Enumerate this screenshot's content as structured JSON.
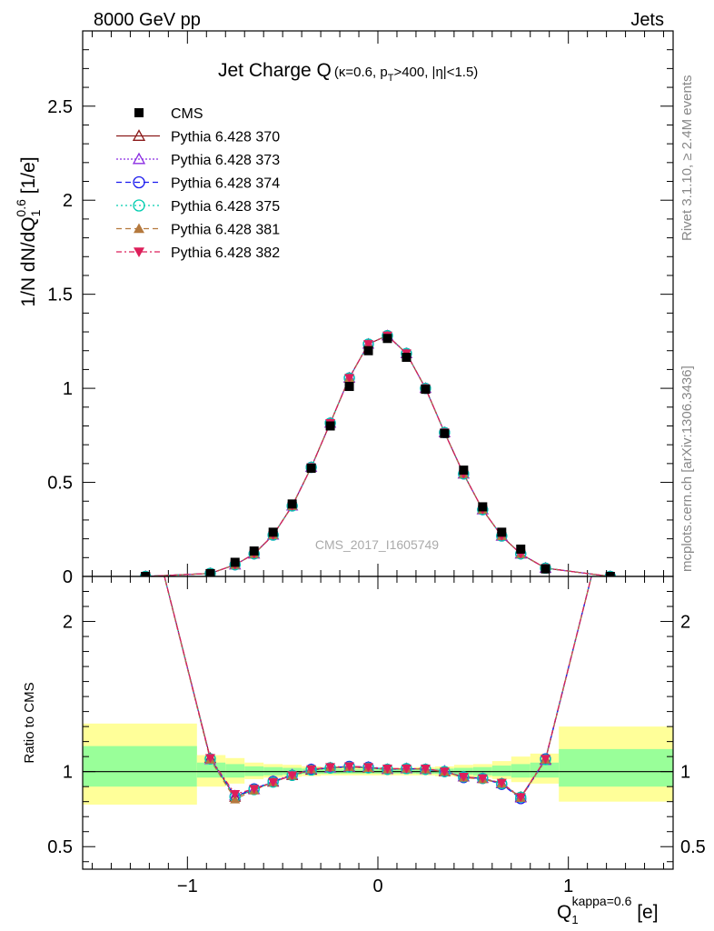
{
  "header": {
    "left": "8000 GeV pp",
    "right": "Jets"
  },
  "side": {
    "rivet": "Rivet 3.1.10, ≥ 2.4M events",
    "mcplots": "mcplots.cern.ch [arXiv:1306.3436]"
  },
  "watermark": "CMS_2017_I1605749",
  "chart_data": {
    "type": "scatter",
    "title": "Jet Charge Q",
    "title_sub": "(κ=0.6, p",
    "title_sub_T": "T",
    "title_sub_rest": ">400, |η|<1.5)",
    "ylabel_main": "1/N dN/dQ",
    "ylabel_main_sub": "1",
    "ylabel_main_sup": "0.6",
    "ylabel_main_unit": " [1/e]",
    "ylabel_ratio": "Ratio to CMS",
    "xlabel": "Q",
    "xlabel_sub": "1",
    "xlabel_sup": "kappa=0.6",
    "xlabel_unit": " [e]",
    "xlim": [
      -1.55,
      1.55
    ],
    "ylim_main": [
      0,
      2.9
    ],
    "ylim_ratio": [
      0.35,
      2.3
    ],
    "main_yticks": [
      "0",
      "0.5",
      "1",
      "1.5",
      "2",
      "2.5"
    ],
    "main_ytick_values": [
      0,
      0.5,
      1,
      1.5,
      2,
      2.5
    ],
    "ratio_yticks": [
      "0.5",
      "1",
      "2"
    ],
    "ratio_ytick_values": [
      0.5,
      1,
      2
    ],
    "xticks": [
      "−1",
      "0",
      "1"
    ],
    "xtick_values": [
      -1,
      0,
      1
    ],
    "legend_position": "top-left",
    "bin_edges": [
      -1.55,
      -0.95,
      -0.8,
      -0.7,
      -0.6,
      -0.5,
      -0.4,
      -0.3,
      -0.2,
      -0.1,
      0.0,
      0.1,
      0.2,
      0.3,
      0.4,
      0.5,
      0.6,
      0.7,
      0.8,
      0.95,
      1.55
    ],
    "x": [
      -1.22,
      -0.88,
      -0.75,
      -0.65,
      -0.55,
      -0.45,
      -0.35,
      -0.25,
      -0.15,
      -0.05,
      0.05,
      0.15,
      0.25,
      0.35,
      0.45,
      0.55,
      0.65,
      0.75,
      0.88,
      1.22
    ],
    "cms": [
      0.0,
      0.015,
      0.075,
      0.135,
      0.235,
      0.385,
      0.575,
      0.8,
      1.01,
      1.2,
      1.265,
      1.165,
      0.995,
      0.76,
      0.565,
      0.37,
      0.235,
      0.145,
      0.04,
      0.0
    ],
    "mc": [
      0.0,
      0.016,
      0.062,
      0.12,
      0.22,
      0.375,
      0.58,
      0.815,
      1.055,
      1.235,
      1.28,
      1.185,
      1.0,
      0.765,
      0.545,
      0.355,
      0.215,
      0.12,
      0.044,
      0.0
    ],
    "band_yellow": [
      [
        0.78,
        1.32
      ],
      [
        0.9,
        1.11
      ],
      [
        0.92,
        1.09
      ],
      [
        0.95,
        1.06
      ],
      [
        0.96,
        1.05
      ],
      [
        0.965,
        1.045
      ],
      [
        0.97,
        1.035
      ],
      [
        0.975,
        1.03
      ],
      [
        0.975,
        1.025
      ],
      [
        0.975,
        1.025
      ],
      [
        0.975,
        1.025
      ],
      [
        0.975,
        1.025
      ],
      [
        0.975,
        1.03
      ],
      [
        0.97,
        1.035
      ],
      [
        0.965,
        1.045
      ],
      [
        0.96,
        1.05
      ],
      [
        0.95,
        1.07
      ],
      [
        0.93,
        1.1
      ],
      [
        0.92,
        1.12
      ],
      [
        0.8,
        1.3
      ]
    ],
    "band_green": [
      [
        0.9,
        1.17
      ],
      [
        0.96,
        1.06
      ],
      [
        0.96,
        1.05
      ],
      [
        0.97,
        1.035
      ],
      [
        0.975,
        1.03
      ],
      [
        0.98,
        1.025
      ],
      [
        0.985,
        1.02
      ],
      [
        0.985,
        1.018
      ],
      [
        0.987,
        1.015
      ],
      [
        0.987,
        1.015
      ],
      [
        0.987,
        1.015
      ],
      [
        0.987,
        1.015
      ],
      [
        0.985,
        1.018
      ],
      [
        0.985,
        1.02
      ],
      [
        0.98,
        1.025
      ],
      [
        0.975,
        1.03
      ],
      [
        0.97,
        1.04
      ],
      [
        0.96,
        1.05
      ],
      [
        0.96,
        1.06
      ],
      [
        0.9,
        1.15
      ]
    ],
    "series": [
      {
        "name": "CMS",
        "marker": "square",
        "color": "#000000",
        "dash": "",
        "ratio": null
      },
      {
        "name": "Pythia 6.428 370",
        "marker": "triangle-open",
        "color": "#8b1a1a",
        "dash": "",
        "ratio": [
          2.8,
          1.09,
          0.83,
          0.88,
          0.93,
          0.975,
          1.01,
          1.025,
          1.03,
          1.025,
          1.015,
          1.02,
          1.015,
          1.0,
          0.965,
          0.955,
          0.92,
          0.83,
          1.08,
          2.8
        ]
      },
      {
        "name": "Pythia 6.428 373",
        "marker": "triangle-open",
        "color": "#8a2be2",
        "dash": "2,2",
        "ratio": [
          2.8,
          1.08,
          0.84,
          0.88,
          0.935,
          0.98,
          1.015,
          1.025,
          1.03,
          1.03,
          1.015,
          1.02,
          1.015,
          1.005,
          0.965,
          0.955,
          0.92,
          0.825,
          1.075,
          2.8
        ]
      },
      {
        "name": "Pythia 6.428 374",
        "marker": "circle-open",
        "color": "#1a1aee",
        "dash": "6,4",
        "ratio": [
          2.8,
          1.085,
          0.835,
          0.885,
          0.935,
          0.975,
          1.015,
          1.025,
          1.035,
          1.03,
          1.015,
          1.02,
          1.015,
          1.0,
          0.96,
          0.955,
          0.915,
          0.82,
          1.085,
          2.8
        ]
      },
      {
        "name": "Pythia 6.428 375",
        "marker": "circle-open",
        "color": "#00cdb0",
        "dash": "2,3",
        "ratio": [
          2.8,
          1.085,
          0.83,
          0.88,
          0.93,
          0.975,
          1.01,
          1.025,
          1.03,
          1.025,
          1.015,
          1.02,
          1.015,
          1.0,
          0.965,
          0.955,
          0.92,
          0.83,
          1.08,
          2.8
        ]
      },
      {
        "name": "Pythia 6.428 381",
        "marker": "triangle-filled",
        "color": "#b5793d",
        "dash": "6,4",
        "ratio": [
          2.8,
          1.08,
          0.815,
          0.875,
          0.93,
          0.975,
          1.015,
          1.03,
          1.03,
          1.025,
          1.015,
          1.02,
          1.015,
          1.0,
          0.96,
          0.95,
          0.92,
          0.825,
          1.08,
          2.8
        ]
      },
      {
        "name": "Pythia 6.428 382",
        "marker": "triangle-down-filled",
        "color": "#dd1f5a",
        "dash": "6,3,2,3",
        "ratio": [
          2.8,
          1.09,
          0.85,
          0.885,
          0.93,
          0.975,
          1.015,
          1.03,
          1.035,
          1.03,
          1.02,
          1.02,
          1.02,
          1.0,
          0.965,
          0.955,
          0.925,
          0.83,
          1.085,
          2.8
        ]
      }
    ]
  }
}
